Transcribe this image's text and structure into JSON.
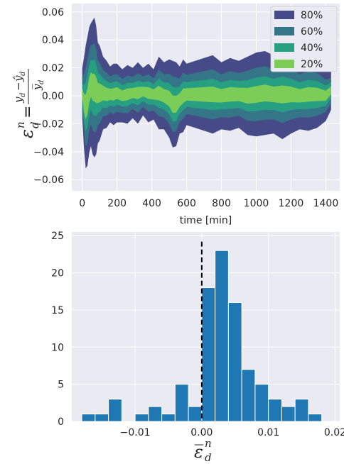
{
  "chart_data": [
    {
      "type": "area",
      "xlabel": "time [min]",
      "ylabel": {
        "lhs_base": "ε",
        "lhs_sup": "n",
        "lhs_sub": "d",
        "eq": "=",
        "num_a": "y",
        "num_a_sub": "d",
        "num_minus": "−",
        "num_b": "ŷ",
        "num_b_sub": "d",
        "den": "y̅",
        "den_sub": "d"
      },
      "xlim": [
        -60,
        1480
      ],
      "ylim": [
        -0.068,
        0.066
      ],
      "xticks": [
        "0",
        "200",
        "400",
        "600",
        "800",
        "1000",
        "1200",
        "1400"
      ],
      "xtick_values": [
        0,
        200,
        400,
        600,
        800,
        1000,
        1200,
        1400
      ],
      "yticks": [
        "−0.06",
        "−0.04",
        "−0.02",
        "0.00",
        "0.02",
        "0.04",
        "0.06"
      ],
      "ytick_values": [
        -0.06,
        -0.04,
        -0.02,
        0.0,
        0.02,
        0.04,
        0.06
      ],
      "grid": true,
      "legend_position": "top-right",
      "x": [
        0,
        10,
        20,
        30,
        40,
        50,
        60,
        70,
        80,
        90,
        100,
        120,
        140,
        160,
        180,
        200,
        230,
        260,
        290,
        320,
        350,
        380,
        410,
        440,
        470,
        500,
        520,
        540,
        560,
        580,
        600,
        650,
        700,
        750,
        800,
        850,
        900,
        950,
        1000,
        1050,
        1100,
        1150,
        1200,
        1250,
        1300,
        1350,
        1400,
        1430
      ],
      "center": [
        0.002,
        -0.005,
        -0.008,
        -0.004,
        0.004,
        0.008,
        0.006,
        0.006,
        0.004,
        0.002,
        0.002,
        0.002,
        0.001,
        0.001,
        0.001,
        0.002,
        0.0,
        0.001,
        0.002,
        0.002,
        0.003,
        0.002,
        0.001,
        0.002,
        0.0,
        -0.002,
        -0.006,
        -0.006,
        -0.003,
        0.0,
        0.001,
        0.001,
        0.001,
        0.001,
        0.0,
        0.001,
        0.001,
        0.0,
        0.001,
        0.002,
        0.001,
        0.001,
        0.001,
        0.0,
        0.001,
        0.001,
        0.0,
        0.004
      ],
      "halfwidth_80": [
        0.018,
        0.032,
        0.044,
        0.046,
        0.045,
        0.044,
        0.048,
        0.05,
        0.046,
        0.036,
        0.034,
        0.026,
        0.024,
        0.02,
        0.022,
        0.021,
        0.019,
        0.021,
        0.018,
        0.022,
        0.017,
        0.021,
        0.018,
        0.026,
        0.024,
        0.028,
        0.031,
        0.03,
        0.024,
        0.026,
        0.022,
        0.024,
        0.026,
        0.028,
        0.024,
        0.026,
        0.024,
        0.028,
        0.03,
        0.03,
        0.028,
        0.032,
        0.028,
        0.024,
        0.026,
        0.024,
        0.018,
        0.014
      ],
      "series": [
        {
          "name": "80%",
          "fraction": 1.0,
          "color": "#464b87"
        },
        {
          "name": "60%",
          "fraction": 0.64,
          "color": "#357588"
        },
        {
          "name": "40%",
          "fraction": 0.4,
          "color": "#27a081"
        },
        {
          "name": "20%",
          "fraction": 0.2,
          "color": "#7bcd58"
        }
      ]
    },
    {
      "type": "bar",
      "xlabel": {
        "base": "ε̅",
        "sup": "n",
        "sub": "d"
      },
      "xlim": [
        -0.0195,
        0.0207
      ],
      "ylim": [
        0,
        25.5
      ],
      "xticks": [
        "−0.01",
        "0.00",
        "0.01",
        "0.02"
      ],
      "xtick_values": [
        -0.01,
        0.0,
        0.01,
        0.02
      ],
      "yticks": [
        "0",
        "5",
        "10",
        "15",
        "20",
        "25"
      ],
      "ytick_values": [
        0,
        5,
        10,
        15,
        20,
        25
      ],
      "grid": true,
      "bar_color": "#1f77b4",
      "vline_x": 0.0,
      "bin_edges": [
        -0.018,
        -0.016,
        -0.014,
        -0.012,
        -0.01,
        -0.008,
        -0.006,
        -0.004,
        -0.002,
        0.0,
        0.002,
        0.004,
        0.006,
        0.008,
        0.01,
        0.012,
        0.014,
        0.016,
        0.018,
        0.02
      ],
      "values": [
        1,
        1,
        3,
        0,
        1,
        2,
        1,
        5,
        2,
        18,
        23,
        16,
        7,
        5,
        3,
        2,
        3,
        1,
        0,
        2
      ]
    }
  ]
}
